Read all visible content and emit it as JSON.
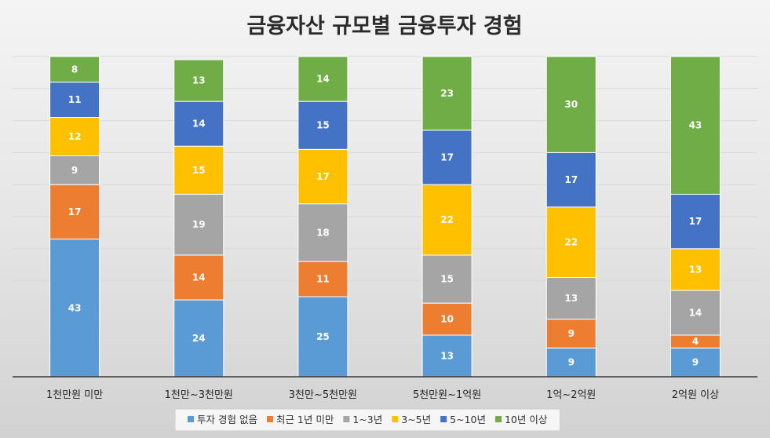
{
  "chart_data": {
    "type": "bar",
    "stacked": true,
    "title": "금융자산 규모별 금융투자 경험",
    "categories": [
      "1천만원 미만",
      "1천만~3천만원",
      "3천만~5천만원",
      "5천만원~1억원",
      "1억~2억원",
      "2억원 이상"
    ],
    "series": [
      {
        "name": "투자 경험 없음",
        "color": "#5b9bd5",
        "values": [
          43,
          24,
          25,
          13,
          9,
          9
        ]
      },
      {
        "name": "최근 1년 미만",
        "color": "#ed7d31",
        "values": [
          17,
          14,
          11,
          10,
          9,
          4
        ]
      },
      {
        "name": "1~3년",
        "color": "#a5a5a5",
        "values": [
          9,
          19,
          18,
          15,
          13,
          14
        ]
      },
      {
        "name": "3~5년",
        "color": "#ffc000",
        "values": [
          12,
          15,
          17,
          22,
          22,
          13
        ]
      },
      {
        "name": "5~10년",
        "color": "#4472c4",
        "values": [
          11,
          14,
          15,
          17,
          17,
          17
        ]
      },
      {
        "name": "10년 이상",
        "color": "#70ad47",
        "values": [
          8,
          13,
          14,
          23,
          30,
          43
        ]
      }
    ],
    "ylim": [
      0,
      100
    ],
    "grid": true,
    "legend_position": "bottom"
  }
}
